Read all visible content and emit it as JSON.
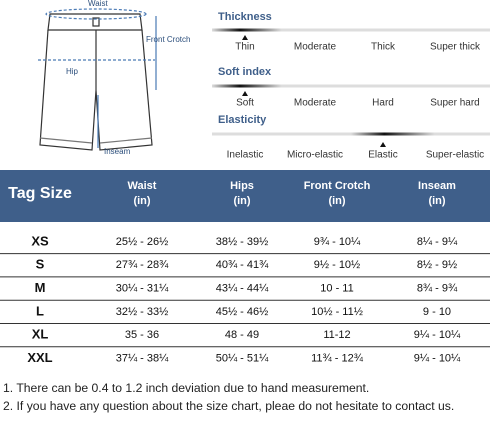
{
  "diagram": {
    "labels": {
      "waist": "Waist",
      "front_crotch": "Front Crotch",
      "hip": "Hip",
      "inseam": "Inseam"
    }
  },
  "scales": [
    {
      "title": "Thickness",
      "options": [
        "Thin",
        "Moderate",
        "Thick",
        "Super thick"
      ]
    },
    {
      "title": "Soft index",
      "options": [
        "Soft",
        "Moderate",
        "Hard",
        "Super hard"
      ]
    },
    {
      "title": "Elasticity",
      "options": [
        "Inelastic",
        "Micro-elastic",
        "Elastic",
        "Super-elastic"
      ]
    }
  ],
  "table": {
    "header": [
      {
        "name": "Tag Size"
      },
      {
        "name": "Waist",
        "unit": "(in)"
      },
      {
        "name": "Hips",
        "unit": "(in)"
      },
      {
        "name": "Front Crotch",
        "unit": "(in)"
      },
      {
        "name": "Inseam",
        "unit": "(in)"
      }
    ],
    "rows": [
      [
        "XS",
        "25½ - 26½",
        "38½ - 39½",
        "9¾ - 10¼",
        "8¼ - 9¼"
      ],
      [
        "S",
        "27¾ - 28¾",
        "40¾ - 41¾",
        "9½ - 10½",
        "8½ - 9½"
      ],
      [
        "M",
        "30¼ - 31¼",
        "43¼ - 44¼",
        "10 - 11",
        "8¾ - 9¾"
      ],
      [
        "L",
        "32½ - 33½",
        "45½ - 46½",
        "10½ - 11½",
        "9 - 10"
      ],
      [
        "XL",
        "35 - 36",
        "48 - 49",
        "11-12",
        "9¼ - 10¼"
      ],
      [
        "XXL",
        "37¼ - 38¼",
        "50¼ - 51¼",
        "11¾ - 12¾",
        "9¼ - 10¼"
      ]
    ]
  },
  "notes": [
    "1. There can be 0.4 to 1.2 inch deviation due to hand measurement.",
    "2. If you have any question about the size chart, pleae do not hesitate to contact us."
  ]
}
